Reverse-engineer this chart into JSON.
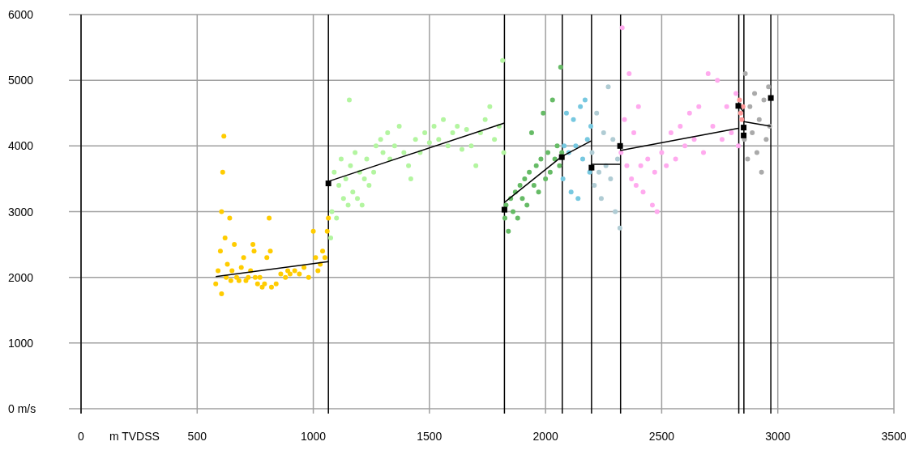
{
  "chart_data": {
    "type": "scatter",
    "xlabel": "m TVDSS",
    "xlim": [
      0,
      3500
    ],
    "xticks": [
      0,
      500,
      1000,
      1500,
      2000,
      2500,
      3000,
      3500
    ],
    "ylim": [
      0,
      6000
    ],
    "yticks": [
      {
        "value": 0,
        "label": "0 m/s"
      },
      1000,
      2000,
      3000,
      4000,
      5000,
      6000
    ],
    "grid": true,
    "marker": "circle",
    "ref_lines": [
      {
        "axis": "x",
        "value": 1065,
        "color": "#000000"
      },
      {
        "axis": "x",
        "value": 1823,
        "color": "#000000"
      },
      {
        "axis": "x",
        "value": 2072,
        "color": "#000000"
      },
      {
        "axis": "x",
        "value": 2198,
        "color": "#000000"
      },
      {
        "axis": "x",
        "value": 2323,
        "color": "#000000"
      },
      {
        "axis": "x",
        "value": 2832,
        "color": "#000000"
      },
      {
        "axis": "x",
        "value": 2854,
        "color": "#000000"
      },
      {
        "axis": "x",
        "value": 2970,
        "color": "#000000"
      }
    ],
    "series": [
      {
        "color": "#ffcc00",
        "x": [
          580,
          590,
          600,
          605,
          605,
          610,
          615,
          620,
          625,
          630,
          640,
          645,
          650,
          660,
          670,
          680,
          690,
          700,
          710,
          720,
          730,
          740,
          745,
          750,
          760,
          770,
          780,
          790,
          800,
          810,
          815,
          820,
          840,
          860,
          880,
          890,
          900,
          920,
          940,
          960,
          980,
          1000,
          1010,
          1020,
          1030,
          1040,
          1050,
          1060,
          1065
        ],
        "values": [
          1900,
          2100,
          2400,
          3000,
          1750,
          3600,
          4150,
          2600,
          2000,
          2200,
          2900,
          1950,
          2100,
          2500,
          2000,
          1950,
          2150,
          2300,
          1950,
          2000,
          2100,
          2500,
          2400,
          2000,
          1900,
          2000,
          1850,
          1900,
          2300,
          2900,
          2400,
          1850,
          1900,
          2050,
          2000,
          2100,
          2050,
          2100,
          2050,
          2150,
          2000,
          2700,
          2300,
          2100,
          2200,
          2400,
          2300,
          2700,
          2900
        ]
      },
      {
        "color": "#b3f5a0",
        "x": [
          1075,
          1080,
          1090,
          1100,
          1110,
          1120,
          1130,
          1140,
          1150,
          1155,
          1160,
          1170,
          1180,
          1190,
          1200,
          1210,
          1220,
          1230,
          1240,
          1260,
          1270,
          1290,
          1300,
          1320,
          1330,
          1350,
          1370,
          1390,
          1410,
          1420,
          1440,
          1460,
          1480,
          1500,
          1520,
          1540,
          1560,
          1580,
          1600,
          1620,
          1640,
          1660,
          1680,
          1700,
          1720,
          1740,
          1760,
          1780,
          1800,
          1815,
          1820
        ],
        "values": [
          2600,
          3000,
          3600,
          2900,
          3400,
          3800,
          3200,
          3500,
          3100,
          4700,
          3700,
          3300,
          3900,
          3200,
          3600,
          3100,
          3500,
          3800,
          3400,
          3600,
          4000,
          4100,
          3900,
          4200,
          3800,
          4000,
          4300,
          3900,
          3700,
          3500,
          4100,
          3900,
          4200,
          4050,
          4300,
          4100,
          4400,
          4000,
          4200,
          4300,
          3950,
          4250,
          4000,
          3700,
          4200,
          4400,
          4600,
          4100,
          4300,
          5300,
          3900
        ]
      },
      {
        "color": "#66bb66",
        "x": [
          1825,
          1830,
          1840,
          1850,
          1860,
          1870,
          1880,
          1890,
          1900,
          1910,
          1920,
          1930,
          1940,
          1950,
          1960,
          1970,
          1980,
          1990,
          2000,
          2010,
          2020,
          2030,
          2040,
          2050,
          2060,
          2065,
          2070
        ],
        "values": [
          2900,
          3100,
          2700,
          3200,
          3000,
          3300,
          2900,
          3400,
          3200,
          3500,
          3100,
          3600,
          4200,
          3400,
          3700,
          3300,
          3800,
          4500,
          3500,
          3900,
          3600,
          4700,
          3800,
          4000,
          3700,
          5200,
          3900
        ]
      },
      {
        "color": "#77c8e0",
        "x": [
          2075,
          2080,
          2090,
          2100,
          2110,
          2120,
          2130,
          2140,
          2150,
          2160,
          2170,
          2180,
          2190,
          2195
        ],
        "values": [
          3500,
          4000,
          4500,
          3900,
          3300,
          4400,
          4000,
          3200,
          4600,
          3800,
          4700,
          4100,
          3600,
          4300
        ]
      },
      {
        "color": "#b0ccd4",
        "x": [
          2200,
          2210,
          2220,
          2230,
          2240,
          2250,
          2260,
          2270,
          2280,
          2290,
          2300,
          2310,
          2320
        ],
        "values": [
          3900,
          3400,
          4500,
          3600,
          3200,
          4200,
          3700,
          4900,
          3500,
          4100,
          3000,
          3800,
          2750
        ]
      },
      {
        "color": "#ffaaee",
        "x": [
          2325,
          2330,
          2340,
          2350,
          2360,
          2370,
          2380,
          2390,
          2400,
          2410,
          2420,
          2440,
          2460,
          2470,
          2480,
          2500,
          2520,
          2540,
          2560,
          2580,
          2600,
          2620,
          2640,
          2660,
          2680,
          2700,
          2720,
          2740,
          2760,
          2780,
          2800,
          2820,
          2830
        ],
        "values": [
          3900,
          5800,
          4400,
          3700,
          5100,
          3500,
          4200,
          3400,
          4600,
          3700,
          3300,
          3800,
          3100,
          3600,
          3000,
          3900,
          3700,
          4200,
          3800,
          4300,
          4000,
          4500,
          4100,
          4600,
          3900,
          5100,
          4300,
          5000,
          4100,
          4600,
          4200,
          4800,
          4000
        ]
      },
      {
        "color": "#ff9999",
        "x": [
          2835,
          2840,
          2845,
          2850
        ],
        "values": [
          4700,
          4500,
          4400,
          4600
        ]
      },
      {
        "color": "#aaaaaa",
        "x": [
          2856,
          2860,
          2870,
          2880,
          2890,
          2900,
          2910,
          2920,
          2930,
          2940,
          2950,
          2960,
          2965
        ],
        "values": [
          4100,
          5100,
          3800,
          4600,
          4200,
          4800,
          3900,
          4400,
          3600,
          4700,
          4100,
          4900,
          4300
        ]
      },
      {
        "type": "line",
        "color": "#000000",
        "marker": "none",
        "x": [
          580,
          1065
        ],
        "values": [
          2010,
          2240
        ]
      },
      {
        "type": "line",
        "color": "#000000",
        "marker": "none",
        "x": [
          1065,
          1823
        ],
        "values": [
          3460,
          4350
        ]
      },
      {
        "type": "line",
        "color": "#000000",
        "marker": "none",
        "x": [
          1823,
          2070,
          2198
        ],
        "values": [
          3140,
          3840,
          4080
        ]
      },
      {
        "type": "line",
        "color": "#000000",
        "marker": "none",
        "x": [
          2198,
          2321
        ],
        "values": [
          3720,
          3720
        ]
      },
      {
        "type": "line",
        "color": "#000000",
        "marker": "none",
        "x": [
          2321,
          2830
        ],
        "values": [
          3930,
          4270
        ]
      },
      {
        "type": "line",
        "color": "#000000",
        "marker": "none",
        "x": [
          2830,
          2853
        ],
        "values": [
          4620,
          4520
        ]
      },
      {
        "type": "line",
        "color": "#000000",
        "marker": "none",
        "x": [
          2853,
          2970
        ],
        "values": [
          4370,
          4300
        ]
      },
      {
        "color": "#000000",
        "marker": "square",
        "x": [
          1065,
          1823,
          2070,
          2198,
          2321,
          2830,
          2853,
          2853,
          2970
        ],
        "values": [
          3430,
          3030,
          3830,
          3670,
          4000,
          4610,
          4280,
          4160,
          4730
        ]
      }
    ]
  }
}
